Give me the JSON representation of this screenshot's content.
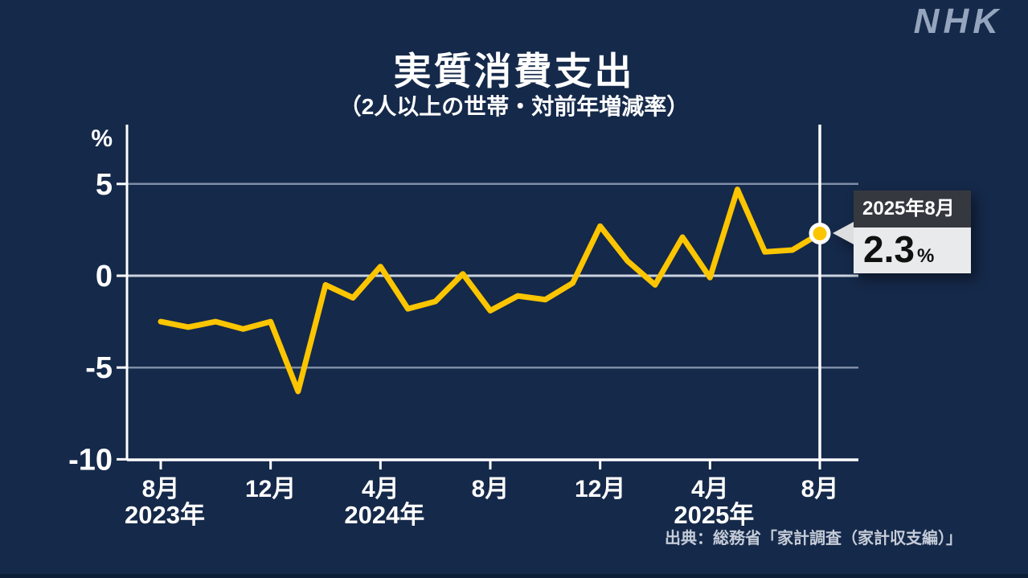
{
  "page": {
    "logo": "NHK",
    "title": "実質消費支出",
    "subtitle": "（2人以上の世帯・対前年増減率）",
    "source": "出典：総務省「家計調査（家計収支編）」",
    "background": "#15294a"
  },
  "callout": {
    "date_label": "2025年8月",
    "value": "2.3",
    "unit": "%"
  },
  "chart_data": {
    "type": "line",
    "title": "実質消費支出",
    "subtitle": "（2人以上の世帯・対前年増減率）",
    "unit_label": "%",
    "months": [
      "2023年8月",
      "2023年9月",
      "2023年10月",
      "2023年11月",
      "2023年12月",
      "2024年1月",
      "2024年2月",
      "2024年3月",
      "2024年4月",
      "2024年5月",
      "2024年6月",
      "2024年7月",
      "2024年8月",
      "2024年9月",
      "2024年10月",
      "2024年11月",
      "2024年12月",
      "2025年1月",
      "2025年2月",
      "2025年3月",
      "2025年4月",
      "2025年5月",
      "2025年6月",
      "2025年7月",
      "2025年8月"
    ],
    "values": [
      -2.5,
      -2.8,
      -2.5,
      -2.9,
      -2.5,
      -6.3,
      -0.5,
      -1.2,
      0.5,
      -1.8,
      -1.4,
      0.1,
      -1.9,
      -1.1,
      -1.3,
      -0.4,
      2.7,
      0.8,
      -0.5,
      2.1,
      -0.1,
      4.7,
      1.3,
      1.4,
      2.3
    ],
    "ylim": [
      -10,
      8.2
    ],
    "y_ticks": [
      5,
      0,
      -5,
      -10
    ],
    "x_ticks": [
      {
        "index": 0,
        "label": "8月"
      },
      {
        "index": 4,
        "label": "12月"
      },
      {
        "index": 8,
        "label": "4月"
      },
      {
        "index": 12,
        "label": "8月"
      },
      {
        "index": 16,
        "label": "12月"
      },
      {
        "index": 20,
        "label": "4月"
      },
      {
        "index": 24,
        "label": "8月"
      }
    ],
    "year_labels": [
      {
        "index": 0,
        "label": "2023年"
      },
      {
        "index": 8,
        "label": "2024年"
      },
      {
        "index": 20,
        "label": "2025年"
      }
    ],
    "highlight": {
      "index": 24,
      "date_label": "2025年8月",
      "value_label": "2.3",
      "unit": "%"
    },
    "grid": true,
    "legend": "none",
    "colors": {
      "line": "#fbc500",
      "grid": "#7e8da6",
      "zero_line": "#ccd4df",
      "axis": "#ffffff",
      "marker_line": "#ffffff",
      "dot_fill": "#fbc500",
      "dot_ring": "#ffffff",
      "callout_header_bg": "#35393f",
      "callout_body_bg": "#e9eaeb"
    }
  }
}
